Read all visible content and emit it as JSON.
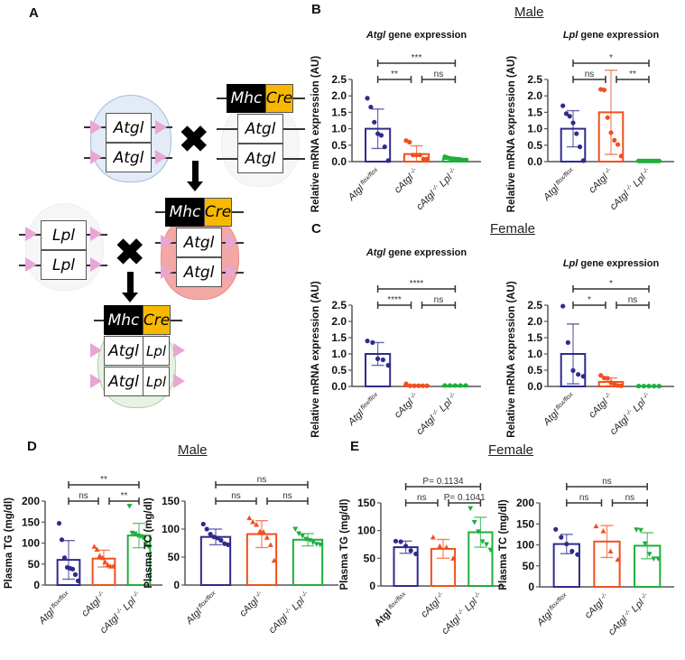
{
  "panels": {
    "a": "A",
    "b": "B",
    "c": "C",
    "d": "D",
    "e": "E"
  },
  "sex": {
    "b": "Male",
    "c": "Female",
    "d": "Male",
    "e": "Female"
  },
  "diagram": {
    "mhc": "Mhc",
    "cre": "Cre",
    "atgl": "Atgl",
    "lpl": "Lpl",
    "cross": "✖"
  },
  "colors": {
    "flox": "#2e2b8c",
    "cAtgl": "#f0501e",
    "dko": "#1fae3e"
  },
  "chart_data": [
    {
      "type": "bar",
      "title_italic": "Atgl",
      "title_rest": " gene expression",
      "ylabel": "Relative mRNA expression (AU)",
      "ylim": [
        0,
        2.5
      ],
      "ticks": [
        0,
        0.5,
        1.0,
        1.5,
        2.0,
        2.5
      ],
      "tick_decimals": 1,
      "categories": [
        {
          "base": "Atgl",
          "sup": "flox/flox"
        },
        {
          "base": "cAtgl",
          "sup": "-/-"
        },
        {
          "base": "cAtgl",
          "sup": "-/-",
          "base2": "Lpl",
          "sup2": "-/-"
        }
      ],
      "means": [
        1.0,
        0.23,
        0.08
      ],
      "sd": [
        0.6,
        0.25,
        0.04
      ],
      "points": [
        [
          1.93,
          1.66,
          1.2,
          0.85,
          0.8,
          0.45,
          0.03
        ],
        [
          0.64,
          0.59,
          0.2,
          0.2,
          0.2,
          0.08,
          0.08
        ],
        [
          0.15,
          0.12,
          0.1,
          0.09,
          0.08,
          0.07,
          0.06,
          0.05,
          0.05
        ]
      ],
      "markers": [
        "circle",
        "circle",
        "circle"
      ],
      "comparisons": [
        {
          "groups": [
            0,
            1
          ],
          "label": "**"
        },
        {
          "groups": [
            1,
            2
          ],
          "label": "ns"
        },
        {
          "groups": [
            0,
            2
          ],
          "label": "***"
        }
      ]
    },
    {
      "type": "bar",
      "title_italic": "Lpl",
      "title_rest": " gene expression",
      "ylabel": "Relative mRNA expression (AU)",
      "ylim": [
        0,
        2.5
      ],
      "ticks": [
        0,
        0.5,
        1.0,
        1.5,
        2.0,
        2.5
      ],
      "tick_decimals": 1,
      "categories": [
        {
          "base": "Atgl",
          "sup": "flox/flox"
        },
        {
          "base": "cAtgl",
          "sup": "-/-"
        },
        {
          "base": "cAtgl",
          "sup": "-/-",
          "base2": "Lpl",
          "sup2": "-/-"
        }
      ],
      "means": [
        1.0,
        1.5,
        0.02
      ],
      "sd": [
        0.55,
        1.28,
        0.01
      ],
      "points": [
        [
          1.7,
          1.46,
          1.38,
          1.18,
          0.85,
          0.45,
          0.03
        ],
        [
          2.2,
          2.18,
          1.34,
          0.88,
          0.65,
          0.52,
          0.17
        ],
        [
          0.02,
          0.02,
          0.02,
          0.02,
          0.02,
          0.02,
          0.02,
          0.02,
          0.02
        ]
      ],
      "markers": [
        "circle",
        "circle",
        "circle"
      ],
      "comparisons": [
        {
          "groups": [
            0,
            1
          ],
          "label": "ns"
        },
        {
          "groups": [
            1,
            2
          ],
          "label": "**"
        },
        {
          "groups": [
            0,
            2
          ],
          "label": "*"
        }
      ]
    },
    {
      "type": "bar",
      "title_italic": "Atgl",
      "title_rest": " gene expression",
      "ylabel": "Relative mRNA expression (AU)",
      "ylim": [
        0,
        2.5
      ],
      "ticks": [
        0,
        0.5,
        1.0,
        1.5,
        2.0,
        2.5
      ],
      "tick_decimals": 1,
      "categories": [
        {
          "base": "Atgl",
          "sup": "flox/flox"
        },
        {
          "base": "cAtgl",
          "sup": "-/-"
        },
        {
          "base": "cAtgl",
          "sup": "-/-",
          "base2": "Lpl",
          "sup2": "-/-"
        }
      ],
      "means": [
        1.0,
        0.03,
        0.02
      ],
      "sd": [
        0.35,
        0.02,
        0.01
      ],
      "points": [
        [
          1.4,
          1.35,
          0.85,
          0.82,
          0.65
        ],
        [
          0.08,
          0.02,
          0.02,
          0.02,
          0.02,
          0.02
        ],
        [
          0.03,
          0.03,
          0.03,
          0.03,
          0.03
        ]
      ],
      "markers": [
        "circle",
        "circle",
        "circle"
      ],
      "comparisons": [
        {
          "groups": [
            0,
            1
          ],
          "label": "****"
        },
        {
          "groups": [
            1,
            2
          ],
          "label": "ns"
        },
        {
          "groups": [
            0,
            2
          ],
          "label": "****"
        }
      ]
    },
    {
      "type": "bar",
      "title_italic": "Lpl",
      "title_rest": " gene expression",
      "ylabel": "Relative mRNA expression (AU)",
      "ylim": [
        0,
        2.5
      ],
      "ticks": [
        0,
        0.5,
        1.0,
        1.5,
        2.0,
        2.5
      ],
      "tick_decimals": 1,
      "categories": [
        {
          "base": "Atgl",
          "sup": "flox/flox"
        },
        {
          "base": "cAtgl",
          "sup": "-/-"
        },
        {
          "base": "cAtgl",
          "sup": "-/-",
          "base2": "Lpl",
          "sup2": "-/-"
        }
      ],
      "means": [
        1.0,
        0.14,
        0.01
      ],
      "sd": [
        0.92,
        0.12,
        0.005
      ],
      "points": [
        [
          2.47,
          1.35,
          0.49,
          0.37,
          0.31
        ],
        [
          0.34,
          0.26,
          0.25,
          0.12,
          0.08,
          0.03,
          0.02
        ],
        [
          0.01,
          0.01,
          0.01,
          0.01,
          0.01
        ]
      ],
      "markers": [
        "circle",
        "circle",
        "circle"
      ],
      "comparisons": [
        {
          "groups": [
            0,
            1
          ],
          "label": "*"
        },
        {
          "groups": [
            1,
            2
          ],
          "label": "ns"
        },
        {
          "groups": [
            0,
            2
          ],
          "label": "*"
        }
      ]
    },
    {
      "type": "bar",
      "title_italic": "",
      "title_rest": "",
      "ylabel": "Plasma TG (mg/dl)",
      "ylim": [
        0,
        200
      ],
      "ticks": [
        0,
        50,
        100,
        150,
        200
      ],
      "tick_decimals": 0,
      "categories": [
        {
          "base": "Atgl",
          "sup": "flox/flox"
        },
        {
          "base": "cAtgl",
          "sup": "-/-"
        },
        {
          "base": "cAtgl",
          "sup": "-/-",
          "base2": "Lpl",
          "sup2": "-/-"
        }
      ],
      "means": [
        60,
        63,
        118
      ],
      "sd": [
        46,
        20,
        29
      ],
      "points": [
        [
          147,
          108,
          65,
          42,
          40,
          38,
          25,
          10
        ],
        [
          92,
          85,
          70,
          65,
          55,
          48,
          45,
          45
        ],
        [
          188,
          124,
          122,
          118,
          116,
          112,
          98,
          92
        ]
      ],
      "markers": [
        "circle",
        "triangle-up",
        "triangle-down"
      ],
      "comparisons": [
        {
          "groups": [
            0,
            1
          ],
          "label": "ns"
        },
        {
          "groups": [
            1,
            2
          ],
          "label": "**"
        },
        {
          "groups": [
            0,
            2
          ],
          "label": "**"
        }
      ]
    },
    {
      "type": "bar",
      "title_italic": "",
      "title_rest": "",
      "ylabel": "Plasma TC (mg/dl)",
      "ylim": [
        0,
        150
      ],
      "ticks": [
        0,
        50,
        100,
        150
      ],
      "tick_decimals": 0,
      "categories": [
        {
          "base": "Atgl",
          "sup": "flox/flox"
        },
        {
          "base": "cAtgl",
          "sup": "-/-"
        },
        {
          "base": "cAtgl",
          "sup": "-/-",
          "base2": "Lpl",
          "sup2": "-/-"
        }
      ],
      "means": [
        86,
        91,
        81
      ],
      "sd": [
        14,
        24,
        11
      ],
      "points": [
        [
          109,
          100,
          91,
          86,
          84,
          80,
          74,
          72
        ],
        [
          120,
          113,
          108,
          96,
          95,
          85,
          72,
          44
        ],
        [
          100,
          92,
          88,
          82,
          80,
          76,
          73,
          72
        ]
      ],
      "markers": [
        "circle",
        "triangle-up",
        "triangle-down"
      ],
      "comparisons": [
        {
          "groups": [
            0,
            1
          ],
          "label": "ns"
        },
        {
          "groups": [
            1,
            2
          ],
          "label": "ns"
        },
        {
          "groups": [
            0,
            2
          ],
          "label": "ns"
        }
      ]
    },
    {
      "type": "bar",
      "title_italic": "",
      "title_rest": "",
      "ylabel": "Plasma TG (mg/dl)",
      "ylim": [
        0,
        150
      ],
      "ticks": [
        0,
        50,
        100,
        150
      ],
      "tick_decimals": 0,
      "categories": [
        {
          "base": "Atgl",
          "sup": "flox/flox",
          "bold": true
        },
        {
          "base": "cAtgl",
          "sup": "-/-"
        },
        {
          "base": "cAtgl",
          "sup": "-/-",
          "base2": "Lpl",
          "sup2": "-/-"
        }
      ],
      "means": [
        70,
        67,
        97
      ],
      "sd": [
        11,
        17,
        27
      ],
      "points": [
        [
          81,
          80,
          72,
          64,
          58
        ],
        [
          88,
          72,
          70,
          50
        ],
        [
          140,
          115,
          98,
          80,
          75,
          65
        ]
      ],
      "markers": [
        "circle",
        "triangle-up",
        "triangle-down"
      ],
      "comparisons": [
        {
          "groups": [
            0,
            1
          ],
          "label": "ns"
        },
        {
          "groups": [
            1,
            2
          ],
          "label": "P= 0.1041"
        },
        {
          "groups": [
            0,
            2
          ],
          "label": "P= 0.1134"
        }
      ]
    },
    {
      "type": "bar",
      "title_italic": "",
      "title_rest": "",
      "ylabel": "Plasma TC (mg/dl)",
      "ylim": [
        0,
        200
      ],
      "ticks": [
        0,
        50,
        100,
        150,
        200
      ],
      "tick_decimals": 0,
      "categories": [
        {
          "base": "Atgl",
          "sup": "flox/flox"
        },
        {
          "base": "cAtgl",
          "sup": "-/-"
        },
        {
          "base": "cAtgl",
          "sup": "-/-",
          "base2": "Lpl",
          "sup2": "-/-"
        }
      ],
      "means": [
        102,
        108,
        98
      ],
      "sd": [
        23,
        38,
        31
      ],
      "points": [
        [
          137,
          118,
          102,
          85,
          77
        ],
        [
          145,
          133,
          85,
          65
        ],
        [
          136,
          135,
          103,
          78,
          67,
          67
        ]
      ],
      "markers": [
        "circle",
        "triangle-up",
        "triangle-down"
      ],
      "comparisons": [
        {
          "groups": [
            0,
            1
          ],
          "label": "ns"
        },
        {
          "groups": [
            1,
            2
          ],
          "label": "ns"
        },
        {
          "groups": [
            0,
            2
          ],
          "label": "ns"
        }
      ]
    }
  ]
}
